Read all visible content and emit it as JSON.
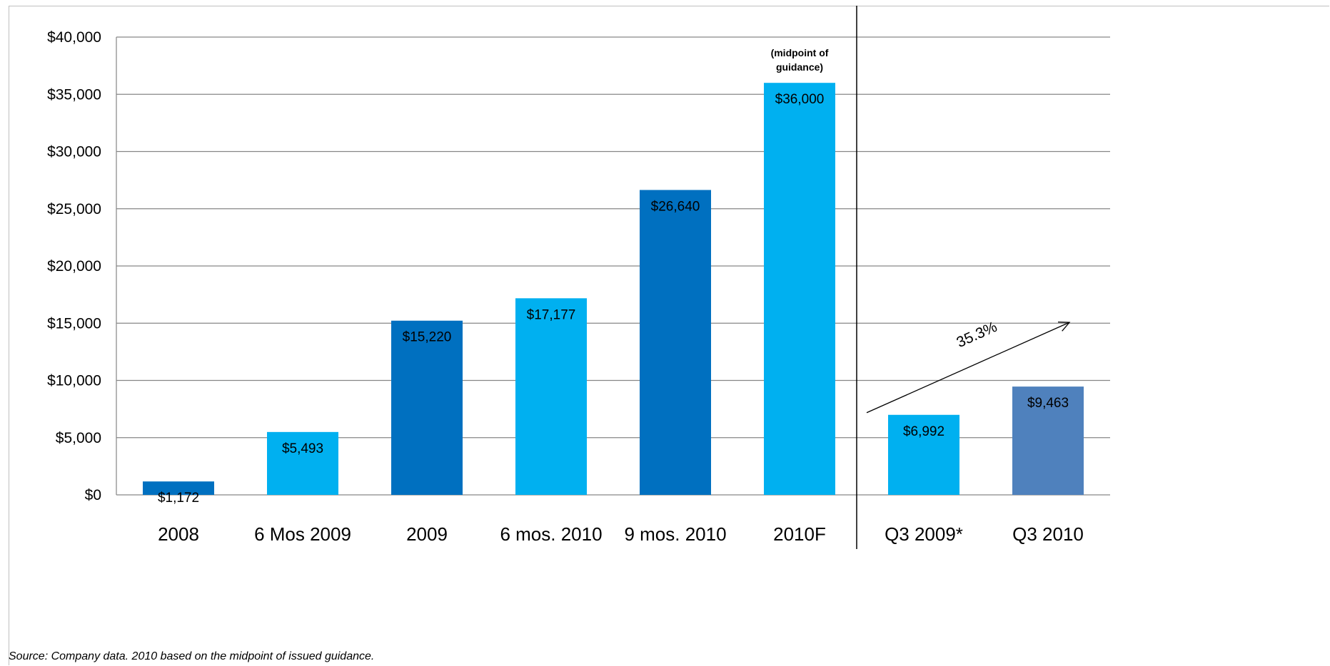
{
  "chart_data": {
    "type": "bar",
    "categories": [
      "2008",
      "6 Mos 2009",
      "2009",
      "6 mos. 2010",
      "9 mos. 2010",
      "2010F",
      "Q3 2009*",
      "Q3 2010"
    ],
    "values": [
      1172,
      5493,
      15220,
      17177,
      26640,
      36000,
      6992,
      9463
    ],
    "data_labels": [
      "$1,172",
      "$5,493",
      "$15,220",
      "$17,177",
      "$26,640",
      "$36,000",
      "$6,992",
      "$9,463"
    ],
    "bar_colors": [
      "#0070c0",
      "#00b0f0",
      "#0070c0",
      "#00b0f0",
      "#0070c0",
      "#00b0f0",
      "#00b0f0",
      "#4f81bd"
    ],
    "ylim": [
      0,
      40000
    ],
    "yticks": [
      0,
      5000,
      10000,
      15000,
      20000,
      25000,
      30000,
      35000,
      40000
    ],
    "ytick_labels": [
      "$0",
      "$5,000",
      "$10,000",
      "$15,000",
      "$20,000",
      "$25,000",
      "$30,000",
      "$35,000",
      "$40,000"
    ],
    "grid": true,
    "divider_after_category": 5,
    "annotations": [
      {
        "category": "2010F",
        "lines": [
          "(midpoint of",
          "guidance)"
        ]
      }
    ],
    "growth_arrow": {
      "from_category": "Q3 2009*",
      "to_category": "Q3 2010",
      "label": "35.3%"
    },
    "title": "",
    "xlabel": "",
    "ylabel": ""
  },
  "footnote": "Source: Company data. 2010 based on the midpoint of issued guidance."
}
